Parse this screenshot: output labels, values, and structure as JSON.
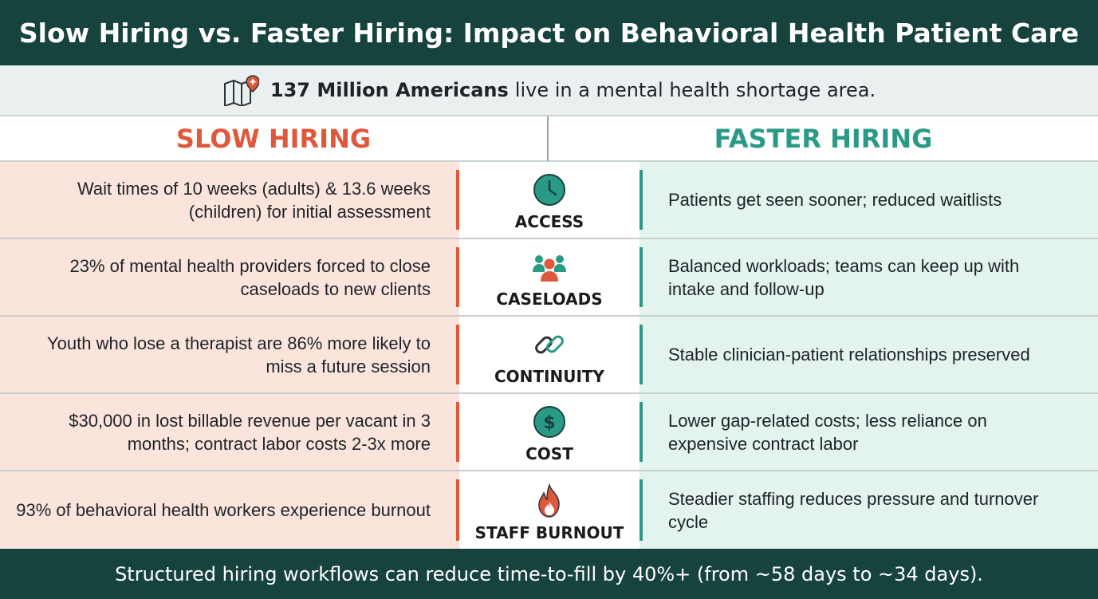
{
  "title": "Slow Hiring vs. Faster Hiring: Impact on Behavioral Health Patient Care",
  "stat": {
    "icon": "map-pin-icon",
    "highlight": "137 Million Americans",
    "text": "live in a mental health shortage area."
  },
  "columns": {
    "left": "SLOW HIRING",
    "right": "FASTER HIRING"
  },
  "colors": {
    "dark_teal": "#17433f",
    "slow_accent": "#e0583c",
    "fast_accent": "#2a9a87",
    "slow_bg": "#fbe4dc",
    "fast_bg": "#e3f3ee"
  },
  "rows": [
    {
      "label": "ACCESS",
      "icon": "clock-icon",
      "slow": "Wait times of 10 weeks (adults) & 13.6 weeks (children) for initial assessment",
      "fast": "Patients get seen sooner; reduced waitlists"
    },
    {
      "label": "CASELOADS",
      "icon": "people-group-icon",
      "slow": "23% of mental health providers forced to close caseloads to new clients",
      "fast": "Balanced workloads; teams can keep up with intake and follow-up"
    },
    {
      "label": "CONTINUITY",
      "icon": "chain-link-icon",
      "slow": "Youth who lose a therapist are 86% more likely to miss a future session",
      "fast": "Stable clinician-patient relationships preserved"
    },
    {
      "label": "COST",
      "icon": "dollar-coin-icon",
      "slow": "$30,000 in lost billable revenue per vacant in 3 months; contract labor costs 2-3x more",
      "fast": "Lower gap-related costs; less reliance on expensive contract labor"
    },
    {
      "label": "STAFF BURNOUT",
      "icon": "flame-icon",
      "slow": "93% of behavioral health workers experience burnout",
      "fast": "Steadier staffing reduces pressure and turnover cycle"
    }
  ],
  "footer": "Structured hiring workflows can reduce time-to-fill by 40%+ (from ~58 days to ~34 days)."
}
